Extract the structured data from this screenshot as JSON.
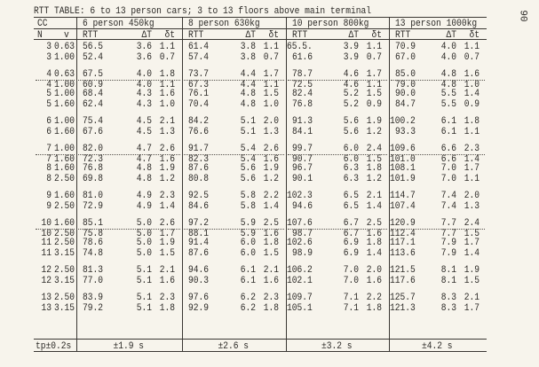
{
  "title": "RTT TABLE: 6 to 13 person cars; 3 to 13 floors above main terminal",
  "page_number": "90",
  "header": {
    "cc": "CC",
    "n": "N",
    "v": "v",
    "groups": [
      "6 person  450kg",
      "8 person  630kg",
      "10 person  800kg",
      "13 person 1000kg"
    ],
    "sub": {
      "rtt": "RTT",
      "dT": "ΔT",
      "dt": "δt"
    }
  },
  "rows": [
    {
      "n": "3",
      "v": "0.63",
      "cells": [
        [
          "56.5",
          "3.6",
          "1.1"
        ],
        [
          "61.4",
          "3.8",
          "1.1"
        ],
        [
          "65.5.",
          "3.9",
          "1.1"
        ],
        [
          "70.9",
          "4.0",
          "1.1"
        ]
      ]
    },
    {
      "n": "3",
      "v": "1.00",
      "cells": [
        [
          "52.4",
          "3.6",
          "0.7"
        ],
        [
          "57.4",
          "3.8",
          "0.7"
        ],
        [
          "61.6",
          "3.9",
          "0.7"
        ],
        [
          "67.0",
          "4.0",
          "0.7"
        ]
      ]
    },
    {
      "n": "4",
      "v": "0.63",
      "cells": [
        [
          "67.5",
          "4.0",
          "1.8"
        ],
        [
          "73.7",
          "4.4",
          "1.7"
        ],
        [
          "78.7",
          "4.6",
          "1.7"
        ],
        [
          "85.0",
          "4.8",
          "1.6"
        ]
      ]
    },
    {
      "n": "4",
      "v": "1.00",
      "cells": [
        [
          "60.9",
          "4.0",
          "1.1"
        ],
        [
          "67.3",
          "4.4",
          "1.1"
        ],
        [
          "72.5",
          "4.6",
          "1.1"
        ],
        [
          "79.0",
          "4.8",
          "1.0"
        ]
      ]
    },
    {
      "n": "5",
      "v": "1.00",
      "cells": [
        [
          "68.4",
          "4.3",
          "1.6"
        ],
        [
          "76.1",
          "4.8",
          "1.5"
        ],
        [
          "82.4",
          "5.2",
          "1.5"
        ],
        [
          "90.0",
          "5.5",
          "1.4"
        ]
      ]
    },
    {
      "n": "5",
      "v": "1.60",
      "cells": [
        [
          "62.4",
          "4.3",
          "1.0"
        ],
        [
          "70.4",
          "4.8",
          "1.0"
        ],
        [
          "76.8",
          "5.2",
          "0.9"
        ],
        [
          "84.7",
          "5.5",
          "0.9"
        ]
      ]
    },
    {
      "n": "6",
      "v": "1.00",
      "cells": [
        [
          "75.4",
          "4.5",
          "2.1"
        ],
        [
          "84.2",
          "5.1",
          "2.0"
        ],
        [
          "91.3",
          "5.6",
          "1.9"
        ],
        [
          "100.2",
          "6.1",
          "1.8"
        ]
      ]
    },
    {
      "n": "6",
      "v": "1.60",
      "cells": [
        [
          "67.6",
          "4.5",
          "1.3"
        ],
        [
          "76.6",
          "5.1",
          "1.3"
        ],
        [
          "84.1",
          "5.6",
          "1.2"
        ],
        [
          "93.3",
          "6.1",
          "1.1"
        ]
      ]
    },
    {
      "n": "7",
      "v": "1.00",
      "cells": [
        [
          "82.0",
          "4.7",
          "2.6"
        ],
        [
          "91.7",
          "5.4",
          "2.6"
        ],
        [
          "99.7",
          "6.0",
          "2.4"
        ],
        [
          "109.6",
          "6.6",
          "2.3"
        ]
      ]
    },
    {
      "n": "7",
      "v": "1.60",
      "cells": [
        [
          "72.3",
          "4.7",
          "1.6"
        ],
        [
          "82.3",
          "5.4",
          "1.6"
        ],
        [
          "90.7",
          "6.0",
          "1.5"
        ],
        [
          "101.0",
          "6.6",
          "1.4"
        ]
      ]
    },
    {
      "n": "8",
      "v": "1.60",
      "cells": [
        [
          "76.8",
          "4.8",
          "1.9"
        ],
        [
          "87.6",
          "5.6",
          "1.9"
        ],
        [
          "96.7",
          "6.3",
          "1.8"
        ],
        [
          "108.1",
          "7.0",
          "1.7"
        ]
      ]
    },
    {
      "n": "8",
      "v": "2.50",
      "cells": [
        [
          "69.8",
          "4.8",
          "1.2"
        ],
        [
          "80.8",
          "5.6",
          "1.2"
        ],
        [
          "90.1",
          "6.3",
          "1.2"
        ],
        [
          "101.9",
          "7.0",
          "1.1"
        ]
      ]
    },
    {
      "n": "9",
      "v": "1.60",
      "cells": [
        [
          "81.0",
          "4.9",
          "2.3"
        ],
        [
          "92.5",
          "5.8",
          "2.2"
        ],
        [
          "102.3",
          "6.5",
          "2.1"
        ],
        [
          "114.7",
          "7.4",
          "2.0"
        ]
      ]
    },
    {
      "n": "9",
      "v": "2.50",
      "cells": [
        [
          "72.9",
          "4.9",
          "1.4"
        ],
        [
          "84.6",
          "5.8",
          "1.4"
        ],
        [
          "94.6",
          "6.5",
          "1.4"
        ],
        [
          "107.4",
          "7.4",
          "1.3"
        ]
      ]
    },
    {
      "n": "10",
      "v": "1.60",
      "cells": [
        [
          "85.1",
          "5.0",
          "2.6"
        ],
        [
          "97.2",
          "5.9",
          "2.5"
        ],
        [
          "107.6",
          "6.7",
          "2.5"
        ],
        [
          "120.9",
          "7.7",
          "2.4"
        ]
      ]
    },
    {
      "n": "10",
      "v": "2.50",
      "cells": [
        [
          "75.8",
          "5.0",
          "1.7"
        ],
        [
          "88.1",
          "5.9",
          "1.6"
        ],
        [
          "98.7",
          "6.7",
          "1.6"
        ],
        [
          "112.4",
          "7.7",
          "1.5"
        ]
      ]
    },
    {
      "n": "11",
      "v": "2.50",
      "cells": [
        [
          "78.6",
          "5.0",
          "1.9"
        ],
        [
          "91.4",
          "6.0",
          "1.8"
        ],
        [
          "102.6",
          "6.9",
          "1.8"
        ],
        [
          "117.1",
          "7.9",
          "1.7"
        ]
      ]
    },
    {
      "n": "11",
      "v": "3.15",
      "cells": [
        [
          "74.8",
          "5.0",
          "1.5"
        ],
        [
          "87.6",
          "6.0",
          "1.5"
        ],
        [
          "98.9",
          "6.9",
          "1.4"
        ],
        [
          "113.6",
          "7.9",
          "1.4"
        ]
      ]
    },
    {
      "n": "12",
      "v": "2.50",
      "cells": [
        [
          "81.3",
          "5.1",
          "2.1"
        ],
        [
          "94.6",
          "6.1",
          "2.1"
        ],
        [
          "106.2",
          "7.0",
          "2.0"
        ],
        [
          "121.5",
          "8.1",
          "1.9"
        ]
      ]
    },
    {
      "n": "12",
      "v": "3.15",
      "cells": [
        [
          "77.0",
          "5.1",
          "1.6"
        ],
        [
          "90.3",
          "6.1",
          "1.6"
        ],
        [
          "102.1",
          "7.0",
          "1.6"
        ],
        [
          "117.6",
          "8.1",
          "1.5"
        ]
      ]
    },
    {
      "n": "13",
      "v": "2.50",
      "cells": [
        [
          "83.9",
          "5.1",
          "2.3"
        ],
        [
          "97.6",
          "6.2",
          "2.3"
        ],
        [
          "109.7",
          "7.1",
          "2.2"
        ],
        [
          "125.7",
          "8.3",
          "2.1"
        ]
      ]
    },
    {
      "n": "13",
      "v": "3.15",
      "cells": [
        [
          "79.2",
          "5.1",
          "1.8"
        ],
        [
          "92.9",
          "6.2",
          "1.8"
        ],
        [
          "105.1",
          "7.1",
          "1.8"
        ],
        [
          "121.3",
          "8.3",
          "1.7"
        ]
      ]
    }
  ],
  "footer": {
    "tp": "tp±0.2s",
    "values": [
      "±1.9 s",
      "±2.6 s",
      "±3.2 s",
      "±4.2 s"
    ]
  }
}
